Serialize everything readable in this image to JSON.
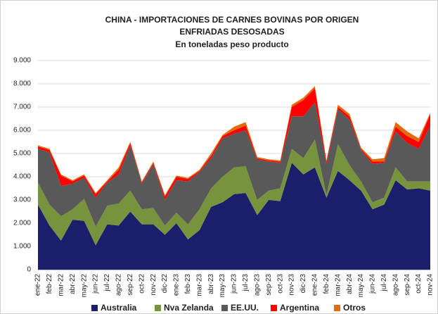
{
  "chart_data": {
    "type": "stacked_area",
    "title": "CHINA - IMPORTACIONES DE CARNES BOVINAS POR ORIGEN",
    "subtitle": "ENFRIADAS DESOSADAS",
    "unit_note": "En toneladas peso producto",
    "categories": [
      "ene-22",
      "feb-22",
      "mar-22",
      "abr-22",
      "may-22",
      "jun-22",
      "jul-22",
      "ago-22",
      "sep-22",
      "oct-22",
      "nov-22",
      "dic-22",
      "ene-23",
      "feb-23",
      "mar-23",
      "abr-23",
      "may-23",
      "jun-23",
      "jul-23",
      "ago-23",
      "sep-23",
      "oct-23",
      "nov-23",
      "dic-23",
      "ene-24",
      "feb-24",
      "mar-24",
      "abr-24",
      "may-24",
      "jun-24",
      "jul-24",
      "ago-24",
      "sep-24",
      "oct-24",
      "nov-24"
    ],
    "series": [
      {
        "name": "Australia",
        "color": "#1b1f6b",
        "values": [
          2800,
          1900,
          1250,
          2150,
          2100,
          1050,
          1950,
          1900,
          2500,
          1950,
          1950,
          1500,
          2000,
          1300,
          1700,
          2700,
          2900,
          3250,
          3300,
          2350,
          3000,
          2950,
          4600,
          4100,
          4400,
          3100,
          4250,
          3850,
          3400,
          2600,
          2800,
          3850,
          3450,
          3500,
          3400
        ]
      },
      {
        "name": "Nva Zelanda",
        "color": "#77933c",
        "values": [
          950,
          900,
          1050,
          450,
          950,
          800,
          800,
          950,
          900,
          650,
          700,
          400,
          450,
          650,
          900,
          800,
          1100,
          1150,
          1150,
          650,
          400,
          550,
          600,
          700,
          1200,
          100,
          1150,
          650,
          400,
          300,
          300,
          550,
          350,
          300,
          400
        ]
      },
      {
        "name": "EE.UU.",
        "color": "#595959",
        "values": [
          1450,
          2250,
          1300,
          1100,
          900,
          1250,
          1000,
          1250,
          1950,
          1100,
          1900,
          1100,
          1400,
          1850,
          1600,
          1300,
          1650,
          1450,
          1550,
          1750,
          1250,
          1100,
          1400,
          1800,
          1600,
          1350,
          1500,
          1950,
          1350,
          1650,
          1500,
          1550,
          1650,
          1400,
          2400
        ]
      },
      {
        "name": "Argentina",
        "color": "#ff0000",
        "values": [
          100,
          100,
          450,
          100,
          100,
          150,
          50,
          200,
          100,
          50,
          50,
          150,
          150,
          100,
          50,
          100,
          100,
          150,
          200,
          50,
          50,
          50,
          400,
          700,
          600,
          100,
          100,
          150,
          50,
          100,
          50,
          200,
          300,
          300,
          500
        ]
      },
      {
        "name": "Otros",
        "color": "#e36c09",
        "values": [
          50,
          50,
          50,
          50,
          50,
          50,
          50,
          100,
          50,
          50,
          50,
          50,
          50,
          50,
          50,
          100,
          50,
          150,
          150,
          50,
          50,
          50,
          100,
          100,
          100,
          50,
          100,
          100,
          50,
          100,
          150,
          200,
          200,
          150,
          50
        ]
      }
    ],
    "ylim": [
      0,
      9000
    ],
    "yticks": [
      0,
      {
        "value": 1000,
        "label": "1.000"
      },
      {
        "value": 2000,
        "label": "2.000"
      },
      {
        "value": 3000,
        "label": "3.000"
      },
      {
        "value": 4000,
        "label": "4.000"
      },
      {
        "value": 5000,
        "label": "5.000"
      },
      {
        "value": 6000,
        "label": "6.000"
      },
      {
        "value": 7000,
        "label": "7.000"
      },
      {
        "value": 8000,
        "label": "8.000"
      },
      {
        "value": 9000,
        "label": "9.000"
      }
    ],
    "grid": true
  }
}
